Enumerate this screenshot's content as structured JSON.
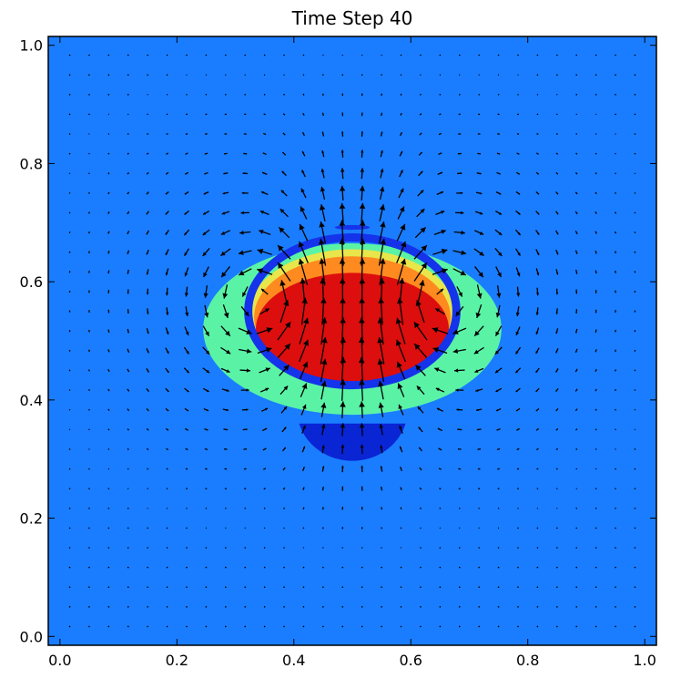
{
  "chart_data": {
    "type": "heatmap",
    "title": "Time Step 40",
    "xlabel": "",
    "ylabel": "",
    "xlim": [
      -0.02,
      1.02
    ],
    "ylim": [
      -0.015,
      1.015
    ],
    "x_ticks": [
      0.0,
      0.2,
      0.4,
      0.6,
      0.8,
      1.0
    ],
    "y_ticks": [
      0.0,
      0.2,
      0.4,
      0.6,
      0.8,
      1.0
    ],
    "x_tick_labels": [
      "0.0",
      "0.2",
      "0.4",
      "0.6",
      "0.8",
      "1.0"
    ],
    "y_tick_labels": [
      "0.0",
      "0.2",
      "0.4",
      "0.6",
      "0.8",
      "1.0"
    ],
    "grid": false,
    "colors": {
      "background": "#1a7dff",
      "outer_halo": "#5af3a6",
      "yellow_band": "#e8e64a",
      "orange_band": "#ff8a1f",
      "core": "#dd0e0e",
      "contour_ring": "#1533ea",
      "low_region": "#0a25d4",
      "arrows": "#000000"
    },
    "field_regions": [
      {
        "kind": "halo",
        "center": [
          0.5,
          0.52
        ],
        "radii": [
          0.255,
          0.145
        ],
        "color": "outer_halo"
      },
      {
        "kind": "band",
        "center": [
          0.5,
          0.54
        ],
        "radii": [
          0.18,
          0.115
        ],
        "color": "yellow_band"
      },
      {
        "kind": "band",
        "center": [
          0.5,
          0.54
        ],
        "radii": [
          0.168,
          0.103
        ],
        "color": "orange_band"
      },
      {
        "kind": "core",
        "center": [
          0.5,
          0.52
        ],
        "radii": [
          0.165,
          0.095
        ],
        "color": "core"
      },
      {
        "kind": "contour",
        "center": [
          0.5,
          0.55
        ],
        "radii": [
          0.178,
          0.125
        ],
        "color": "contour_ring"
      },
      {
        "kind": "low",
        "center": [
          0.5,
          0.385
        ],
        "radii": [
          0.095,
          0.088
        ],
        "cap_y": 0.36,
        "color": "low_region"
      },
      {
        "kind": "low-top",
        "center": [
          0.5,
          0.692
        ],
        "radii": [
          0.03,
          0.004
        ],
        "color": "contour_ring"
      }
    ],
    "vector_field": {
      "x_range": [
        0.0,
        1.0
      ],
      "y_range": [
        0.0,
        1.0
      ],
      "n": 30,
      "vortex_left": [
        0.35,
        0.57
      ],
      "vortex_right": [
        0.65,
        0.57
      ],
      "bubble_center": [
        0.5,
        0.55
      ]
    }
  }
}
